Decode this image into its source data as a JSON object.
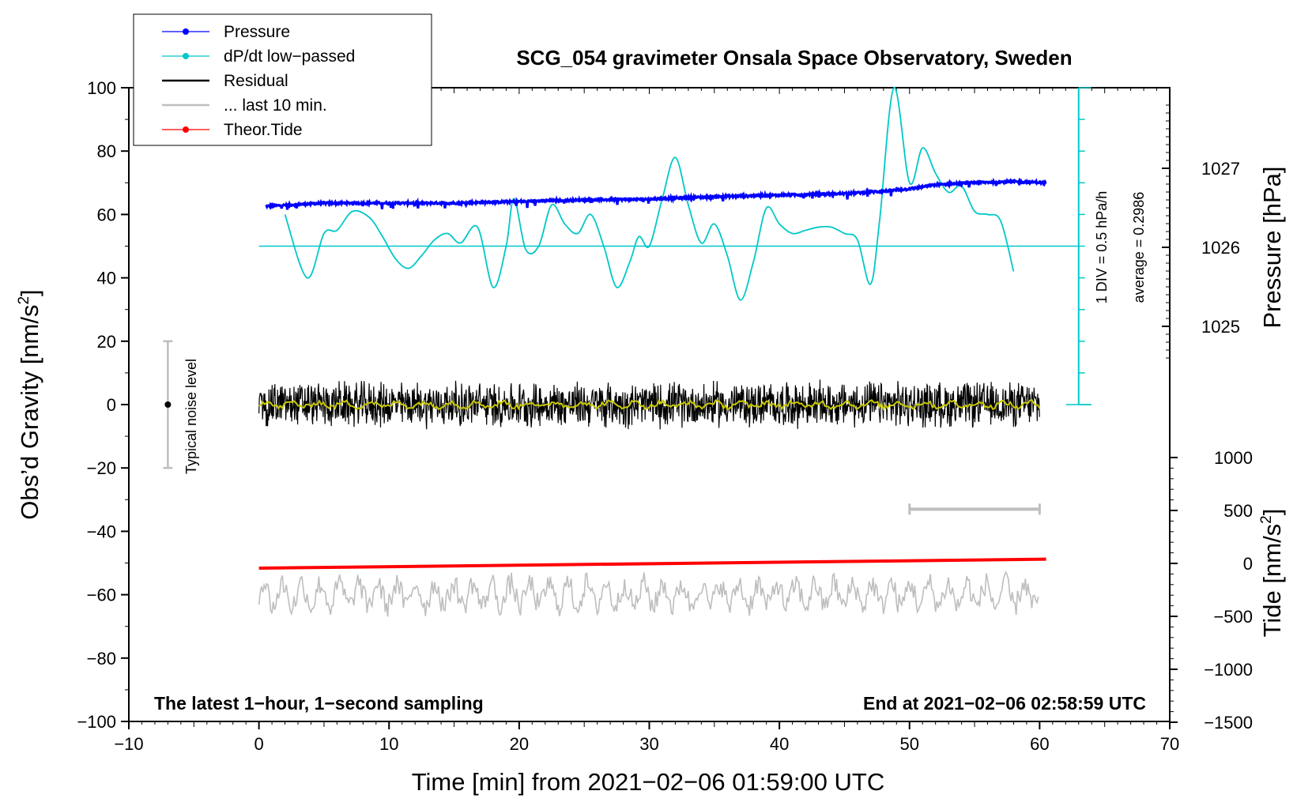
{
  "chart_data": {
    "type": "line",
    "title": "SCG_054 gravimeter Onsala Space Observatory, Sweden",
    "xlabel": "Time [min] from 2021−02−06 01:59:00 UTC",
    "ylabel_left_main": "Obs’d Gravity [nm/s",
    "ylabel_left_sup": "2",
    "ylabel_left_tail": "]",
    "ylabel_right_pressure": "Pressure [hPa]",
    "ylabel_right_tide_main": "Tide [nm/s",
    "ylabel_right_tide_sup": "2",
    "ylabel_right_tide_tail": "]",
    "xlim": [
      -10,
      70
    ],
    "ylim": [
      -100,
      100
    ],
    "x_ticks": [
      "−10",
      "0",
      "10",
      "20",
      "30",
      "40",
      "50",
      "60",
      "70"
    ],
    "y_ticks": [
      "−100",
      "−80",
      "−60",
      "−40",
      "−20",
      "0",
      "20",
      "40",
      "60",
      "80",
      "100"
    ],
    "pressure_axis": {
      "ticks": [
        "1025",
        "1026",
        "1027"
      ],
      "tick_values": [
        1025,
        1026,
        1027
      ]
    },
    "tide_axis": {
      "ticks": [
        "−1500",
        "−1000",
        "−500",
        "0",
        "500",
        "1000"
      ],
      "tick_values": [
        -1500,
        -1000,
        -500,
        0,
        500,
        1000
      ]
    },
    "legend": [
      {
        "name": "Pressure",
        "color": "#0000ff",
        "marker": true
      },
      {
        "name": "dP/dt low−passed",
        "color": "#00c8c8",
        "marker": true
      },
      {
        "name": "Residual",
        "color": "#000000",
        "marker": false
      },
      {
        "name": "... last 10 min.",
        "color": "#bebebe",
        "marker": false
      },
      {
        "name": "Theor.Tide",
        "color": "#ff0000",
        "marker": true
      }
    ],
    "series": [
      {
        "name": "Pressure",
        "color": "#0000ff",
        "x": [
          0.5,
          5,
          10,
          15,
          20,
          25,
          30,
          35,
          40,
          45,
          48,
          50,
          52,
          55,
          58,
          60.5
        ],
        "y_hpa": [
          1026.52,
          1026.56,
          1026.56,
          1026.56,
          1026.58,
          1026.6,
          1026.61,
          1026.64,
          1026.66,
          1026.68,
          1026.71,
          1026.74,
          1026.79,
          1026.82,
          1026.83,
          1026.82
        ]
      },
      {
        "name": "dP/dt low−passed",
        "color": "#00c8c8",
        "x": [
          2,
          3.7,
          5,
          6,
          7.2,
          8.5,
          9.5,
          10.5,
          11.5,
          12.5,
          13.5,
          14.5,
          15.5,
          16.8,
          18,
          19,
          19.6,
          20.5,
          21.5,
          22.5,
          23.5,
          24.5,
          25.5,
          26.5,
          27.5,
          28.5,
          29.2,
          30,
          31,
          32,
          33,
          34,
          35,
          36,
          37,
          38,
          39,
          40,
          41,
          42,
          43,
          44,
          45,
          46,
          47,
          47.7,
          48.8,
          50,
          51,
          52,
          53,
          54,
          55,
          56,
          57,
          58
        ],
        "y": [
          60,
          40,
          54,
          55,
          61,
          59,
          53,
          46,
          43,
          47,
          52,
          54,
          51,
          56,
          37,
          50,
          65,
          49,
          50,
          63,
          57,
          54,
          60,
          50,
          37,
          45,
          53,
          50,
          65,
          78,
          63,
          51,
          57,
          47,
          33,
          45,
          62,
          57,
          54,
          55,
          56,
          56,
          54,
          52,
          38,
          58,
          100,
          70,
          81,
          73,
          67,
          69,
          61,
          60,
          58,
          42
        ]
      },
      {
        "name": "Residual",
        "color": "#000000",
        "x_range": [
          0,
          60
        ],
        "amplitude_nm_s2": 8,
        "smoothed_color": "#c8c800"
      },
      {
        "name": "... last 10 min.",
        "color": "#bebebe",
        "x_range": [
          0,
          60
        ],
        "display_offset_nm_s2": -60,
        "amplitude_nm_s2": 8
      },
      {
        "name": "Theor.Tide",
        "color": "#ff0000",
        "x": [
          0,
          60.5
        ],
        "y_tide": [
          -45,
          40
        ]
      }
    ],
    "dpdt_baseline": 50,
    "noise_bar": {
      "x": -7,
      "y": 0,
      "low": -20,
      "high": 20,
      "label": "Typical noise level"
    },
    "scale_bar": {
      "x_start": 50,
      "x_end": 60,
      "y": -33
    },
    "annotations": {
      "div": "1 DIV = 0.5 hPa/h",
      "average": "average = 0.2986",
      "bottom_left": "The latest 1−hour, 1−second sampling",
      "bottom_right": "End at 2021−02−06 02:58:59 UTC"
    }
  }
}
